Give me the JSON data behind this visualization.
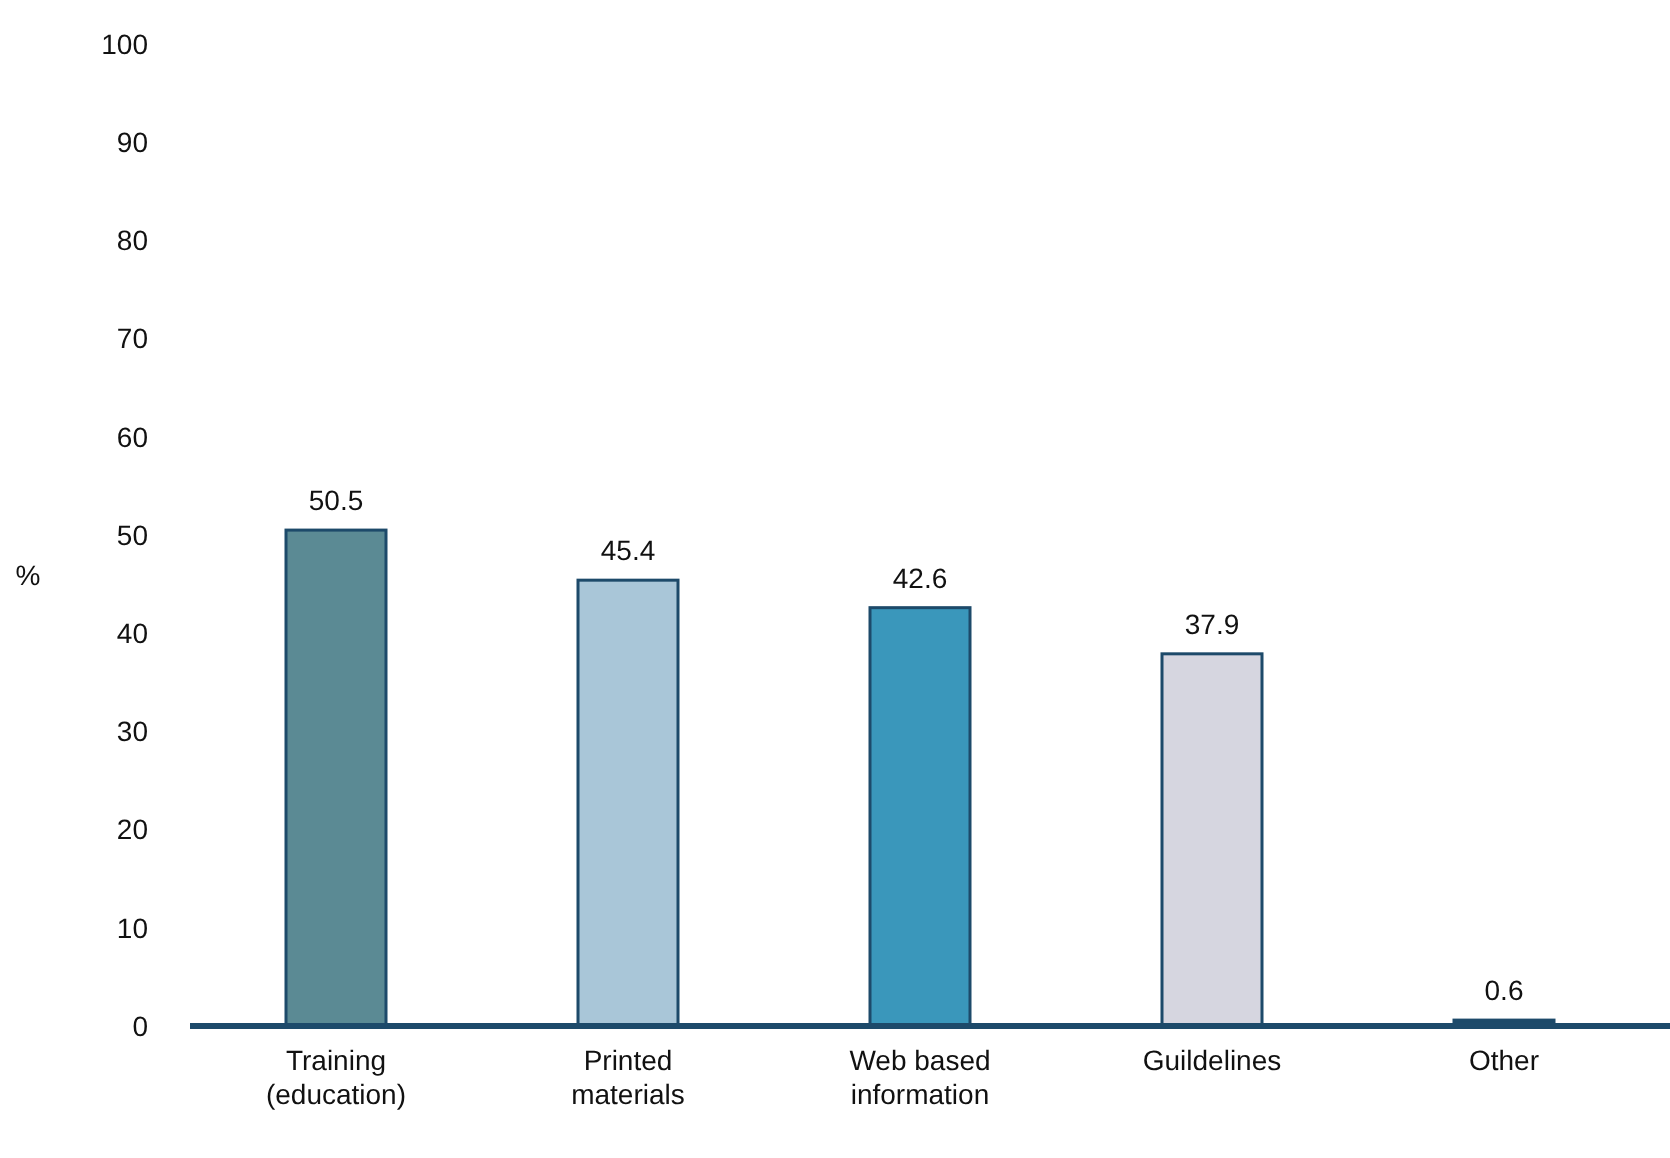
{
  "chart_data": {
    "type": "bar",
    "ylabel": "%",
    "categories": [
      "Training (education)",
      "Printed materials",
      "Web based information",
      "Guildelines",
      "Other"
    ],
    "values": [
      50.5,
      45.4,
      42.6,
      37.9,
      0.6
    ],
    "colors": [
      "#5b8a94",
      "#a9c6d8",
      "#3a97bb",
      "#d6d6e0",
      "#1d4a6a"
    ],
    "ylim": [
      0,
      100
    ],
    "yticks": [
      0,
      10,
      20,
      30,
      40,
      50,
      60,
      70,
      80,
      90,
      100
    ],
    "data_labels": true
  }
}
